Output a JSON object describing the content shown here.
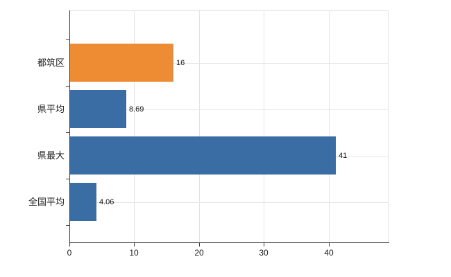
{
  "chart_data": {
    "type": "bar",
    "orientation": "horizontal",
    "title": "",
    "xlabel": "",
    "ylabel": "",
    "categories": [
      "都筑区",
      "県平均",
      "県最大",
      "全国平均"
    ],
    "values": [
      16,
      8.69,
      41,
      4.06
    ],
    "value_labels": [
      "16",
      "8.69",
      "41",
      "4.06"
    ],
    "bar_colors": [
      "#ED8C33",
      "#3A6DA4",
      "#3A6DA4",
      "#3A6DA4"
    ],
    "highlight_color": "#ED8C33",
    "base_color": "#3A6DA4",
    "xlim": [
      0,
      49
    ],
    "x_ticks": [
      "0",
      "10",
      "20",
      "30",
      "40"
    ],
    "x_tick_values": [
      0,
      10,
      20,
      30,
      40
    ],
    "grid": true,
    "legend_position": "none",
    "colors": {
      "grid": "#e2e2e2",
      "axis": "#3c3c3c",
      "text": "#1a1a1a",
      "background": "#ffffff"
    }
  }
}
